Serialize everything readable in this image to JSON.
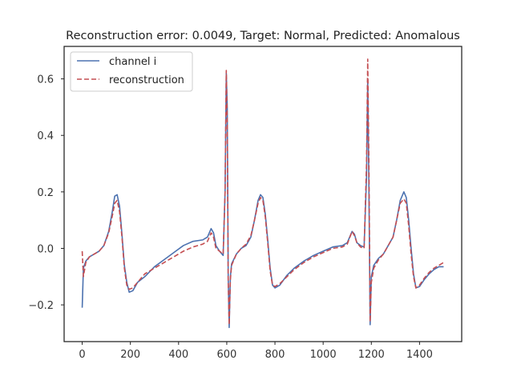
{
  "chart_data": {
    "type": "line",
    "title": "Reconstruction error: 0.0049, Target: Normal, Predicted: Anomalous",
    "xlabel": "",
    "ylabel": "",
    "xlim": [
      -75,
      1575
    ],
    "ylim": [
      -0.33,
      0.715
    ],
    "x_ticks": [
      0,
      200,
      400,
      600,
      800,
      1000,
      1200,
      1400
    ],
    "x_tick_labels": [
      "0",
      "200",
      "400",
      "600",
      "800",
      "1000",
      "1200",
      "1400"
    ],
    "y_ticks": [
      -0.2,
      0.0,
      0.2,
      0.4,
      0.6
    ],
    "y_tick_labels": [
      "−0.2",
      "0.0",
      "0.2",
      "0.4",
      "0.6"
    ],
    "grid": false,
    "legend_position": "top-left",
    "series": [
      {
        "name": "channel i",
        "color": "#4c72b0",
        "style": "solid",
        "points": [
          [
            0,
            -0.21
          ],
          [
            5,
            -0.07
          ],
          [
            15,
            -0.045
          ],
          [
            30,
            -0.03
          ],
          [
            50,
            -0.02
          ],
          [
            70,
            -0.01
          ],
          [
            90,
            0.01
          ],
          [
            110,
            0.06
          ],
          [
            125,
            0.13
          ],
          [
            135,
            0.185
          ],
          [
            145,
            0.19
          ],
          [
            155,
            0.15
          ],
          [
            165,
            0.05
          ],
          [
            175,
            -0.06
          ],
          [
            185,
            -0.12
          ],
          [
            195,
            -0.155
          ],
          [
            210,
            -0.15
          ],
          [
            230,
            -0.12
          ],
          [
            260,
            -0.1
          ],
          [
            300,
            -0.065
          ],
          [
            340,
            -0.04
          ],
          [
            380,
            -0.015
          ],
          [
            420,
            0.01
          ],
          [
            460,
            0.025
          ],
          [
            500,
            0.03
          ],
          [
            520,
            0.04
          ],
          [
            535,
            0.07
          ],
          [
            545,
            0.055
          ],
          [
            555,
            0.01
          ],
          [
            570,
            -0.01
          ],
          [
            585,
            -0.025
          ],
          [
            593,
            0.2
          ],
          [
            598,
            0.62
          ],
          [
            602,
            0.5
          ],
          [
            606,
            -0.1
          ],
          [
            610,
            -0.28
          ],
          [
            615,
            -0.1
          ],
          [
            620,
            -0.055
          ],
          [
            640,
            -0.02
          ],
          [
            660,
            0.0
          ],
          [
            680,
            0.01
          ],
          [
            700,
            0.04
          ],
          [
            715,
            0.1
          ],
          [
            730,
            0.17
          ],
          [
            740,
            0.19
          ],
          [
            750,
            0.18
          ],
          [
            760,
            0.12
          ],
          [
            770,
            0.03
          ],
          [
            780,
            -0.07
          ],
          [
            790,
            -0.13
          ],
          [
            800,
            -0.14
          ],
          [
            820,
            -0.13
          ],
          [
            850,
            -0.095
          ],
          [
            880,
            -0.07
          ],
          [
            920,
            -0.045
          ],
          [
            960,
            -0.025
          ],
          [
            1000,
            -0.01
          ],
          [
            1040,
            0.005
          ],
          [
            1080,
            0.01
          ],
          [
            1100,
            0.02
          ],
          [
            1120,
            0.06
          ],
          [
            1130,
            0.05
          ],
          [
            1140,
            0.02
          ],
          [
            1155,
            0.01
          ],
          [
            1170,
            0.005
          ],
          [
            1180,
            0.25
          ],
          [
            1185,
            0.6
          ],
          [
            1190,
            0.2
          ],
          [
            1195,
            -0.27
          ],
          [
            1200,
            -0.1
          ],
          [
            1210,
            -0.06
          ],
          [
            1230,
            -0.035
          ],
          [
            1250,
            -0.02
          ],
          [
            1270,
            0.01
          ],
          [
            1290,
            0.04
          ],
          [
            1305,
            0.1
          ],
          [
            1320,
            0.17
          ],
          [
            1335,
            0.2
          ],
          [
            1345,
            0.18
          ],
          [
            1355,
            0.1
          ],
          [
            1365,
            0.0
          ],
          [
            1375,
            -0.09
          ],
          [
            1385,
            -0.14
          ],
          [
            1400,
            -0.135
          ],
          [
            1420,
            -0.11
          ],
          [
            1440,
            -0.09
          ],
          [
            1460,
            -0.075
          ],
          [
            1480,
            -0.065
          ],
          [
            1500,
            -0.065
          ]
        ]
      },
      {
        "name": "reconstruction",
        "color": "#c44e52",
        "style": "dashed",
        "points": [
          [
            0,
            -0.01
          ],
          [
            5,
            -0.1
          ],
          [
            15,
            -0.05
          ],
          [
            30,
            -0.03
          ],
          [
            50,
            -0.02
          ],
          [
            70,
            -0.01
          ],
          [
            90,
            0.01
          ],
          [
            110,
            0.055
          ],
          [
            125,
            0.115
          ],
          [
            135,
            0.16
          ],
          [
            145,
            0.17
          ],
          [
            155,
            0.13
          ],
          [
            165,
            0.04
          ],
          [
            175,
            -0.07
          ],
          [
            185,
            -0.13
          ],
          [
            195,
            -0.145
          ],
          [
            210,
            -0.14
          ],
          [
            230,
            -0.12
          ],
          [
            260,
            -0.09
          ],
          [
            300,
            -0.07
          ],
          [
            340,
            -0.05
          ],
          [
            380,
            -0.03
          ],
          [
            420,
            -0.01
          ],
          [
            460,
            0.005
          ],
          [
            500,
            0.015
          ],
          [
            520,
            0.025
          ],
          [
            535,
            0.055
          ],
          [
            545,
            0.04
          ],
          [
            555,
            0.0
          ],
          [
            570,
            -0.01
          ],
          [
            585,
            -0.02
          ],
          [
            593,
            0.2
          ],
          [
            598,
            0.63
          ],
          [
            602,
            0.45
          ],
          [
            606,
            -0.12
          ],
          [
            610,
            -0.27
          ],
          [
            615,
            -0.11
          ],
          [
            620,
            -0.06
          ],
          [
            640,
            -0.02
          ],
          [
            660,
            0.0
          ],
          [
            680,
            0.015
          ],
          [
            700,
            0.045
          ],
          [
            715,
            0.1
          ],
          [
            730,
            0.16
          ],
          [
            740,
            0.18
          ],
          [
            750,
            0.17
          ],
          [
            760,
            0.11
          ],
          [
            770,
            0.02
          ],
          [
            780,
            -0.08
          ],
          [
            790,
            -0.13
          ],
          [
            800,
            -0.135
          ],
          [
            820,
            -0.125
          ],
          [
            850,
            -0.1
          ],
          [
            880,
            -0.075
          ],
          [
            920,
            -0.05
          ],
          [
            960,
            -0.03
          ],
          [
            1000,
            -0.015
          ],
          [
            1040,
            0.0
          ],
          [
            1080,
            0.005
          ],
          [
            1100,
            0.015
          ],
          [
            1120,
            0.06
          ],
          [
            1130,
            0.045
          ],
          [
            1140,
            0.02
          ],
          [
            1155,
            0.005
          ],
          [
            1170,
            0.0
          ],
          [
            1180,
            0.3
          ],
          [
            1185,
            0.67
          ],
          [
            1190,
            0.3
          ],
          [
            1195,
            -0.26
          ],
          [
            1200,
            -0.12
          ],
          [
            1210,
            -0.07
          ],
          [
            1230,
            -0.04
          ],
          [
            1250,
            -0.02
          ],
          [
            1270,
            0.01
          ],
          [
            1290,
            0.04
          ],
          [
            1305,
            0.1
          ],
          [
            1320,
            0.16
          ],
          [
            1335,
            0.175
          ],
          [
            1345,
            0.16
          ],
          [
            1355,
            0.08
          ],
          [
            1365,
            -0.02
          ],
          [
            1375,
            -0.1
          ],
          [
            1385,
            -0.14
          ],
          [
            1400,
            -0.13
          ],
          [
            1420,
            -0.105
          ],
          [
            1440,
            -0.085
          ],
          [
            1460,
            -0.07
          ],
          [
            1480,
            -0.06
          ],
          [
            1500,
            -0.05
          ]
        ]
      }
    ]
  }
}
